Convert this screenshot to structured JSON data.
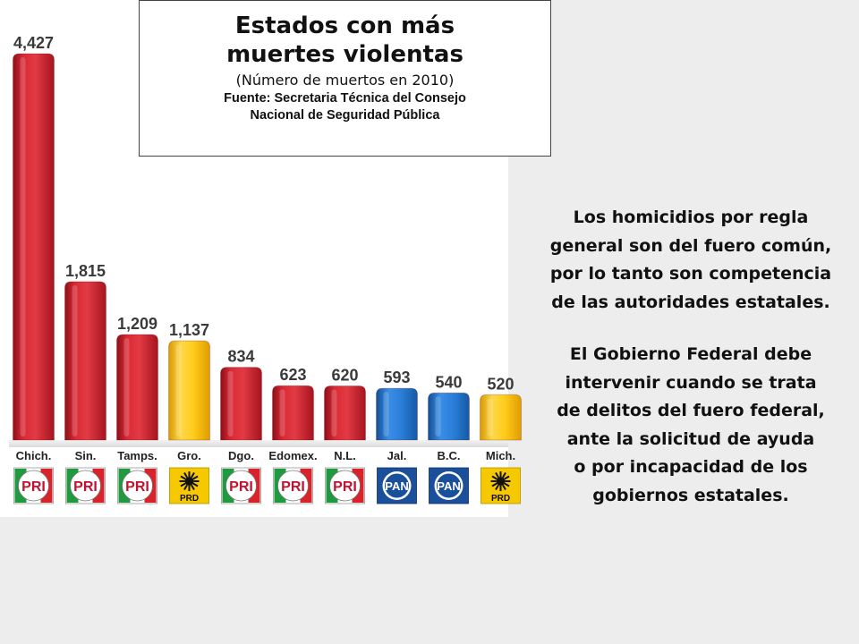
{
  "title": {
    "line1": "Estados con más",
    "line2": "muertes violentas",
    "subtitle": "(Número de muertos en 2010)",
    "source_line1": "Fuente: Secretaria Técnica del Consejo",
    "source_line2": "Nacional de Seguridad Pública"
  },
  "chart_data": {
    "type": "bar",
    "title": "Estados con más muertes violentas (Número de muertos en 2010)",
    "source": "Fuente: Secretaria Técnica del Consejo Nacional de Seguridad Pública",
    "categories": [
      "Chich.",
      "Sin.",
      "Tamps.",
      "Gro.",
      "Dgo.",
      "Edomex.",
      "N.L.",
      "Jal.",
      "B.C.",
      "Mich."
    ],
    "values": [
      4427,
      1815,
      1209,
      1137,
      834,
      623,
      620,
      593,
      540,
      520
    ],
    "value_labels": [
      "4,427",
      "1,815",
      "1,209",
      "1,137",
      "834",
      "623",
      "620",
      "593",
      "540",
      "520"
    ],
    "parties": [
      "PRI",
      "PRI",
      "PRI",
      "PRD",
      "PRI",
      "PRI",
      "PRI",
      "PAN",
      "PAN",
      "PRD"
    ],
    "party_colors": {
      "PRI": "#cc1f2b",
      "PRD": "#f4b800",
      "PAN": "#1e6fc7"
    },
    "xlabel": "",
    "ylabel": "",
    "grid": false,
    "legend": "none"
  },
  "commentary": {
    "paragraph1": [
      "Los homicidios por regla",
      "general son del fuero común,",
      "por lo tanto son competencia",
      "de las autoridades estatales."
    ],
    "paragraph2": [
      "El Gobierno Federal debe",
      "intervenir cuando se trata",
      "de delitos del fuero federal,",
      "ante la solicitud de ayuda",
      "o por incapacidad de los",
      "gobiernos estatales."
    ]
  }
}
